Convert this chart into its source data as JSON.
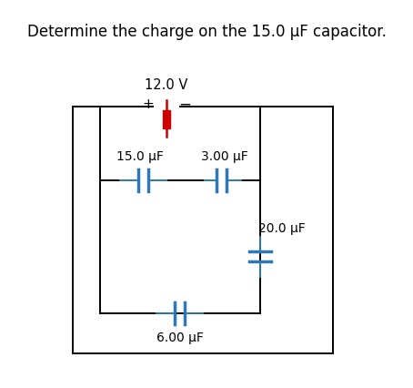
{
  "title": "Determine the charge on the 15.0 μF capacitor.",
  "title_fontsize": 12,
  "background_color": "#ffffff",
  "wire_color": "#000000",
  "cap_color": "#2e78b5",
  "battery_line_color": "#cc0000",
  "battery_rect_color": "#cc0000",
  "text_color": "#000000",
  "label_color": "#000000",
  "labels": {
    "battery_voltage": "12.0 V",
    "plus": "+",
    "minus": "−",
    "cap1": "15.0 μF",
    "cap2": "3.00 μF",
    "cap3": "20.0 μF",
    "cap4": "6.00 μF"
  },
  "figsize": [
    4.54,
    4.26
  ],
  "dpi": 100
}
